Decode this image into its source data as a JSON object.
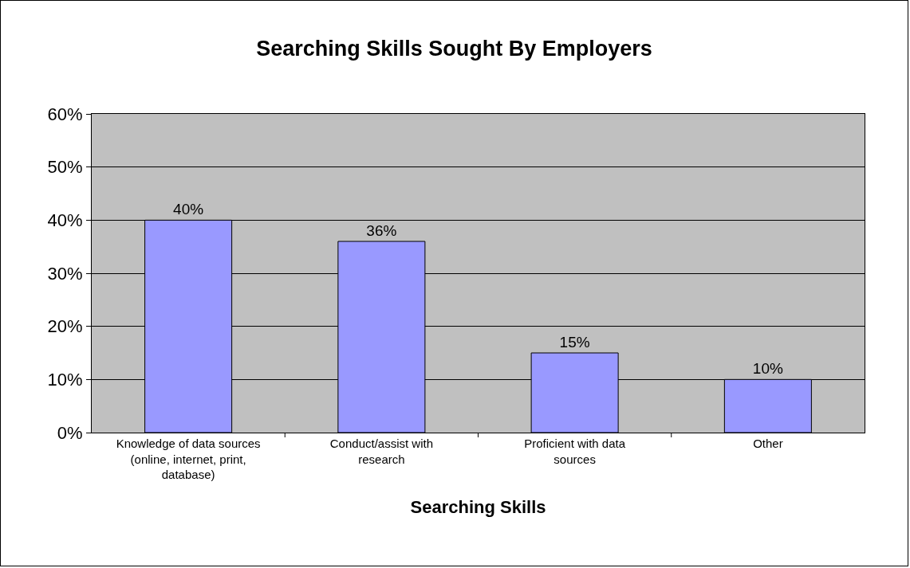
{
  "chart_data": {
    "type": "bar",
    "title": "Searching Skills Sought By Employers",
    "xlabel": "Searching Skills",
    "categories": [
      "Knowledge of data sources (online, internet, print, database)",
      "Conduct/assist with research",
      "Proficient with data sources",
      "Other"
    ],
    "values": [
      40,
      36,
      15,
      10
    ],
    "value_labels": [
      "40%",
      "36%",
      "15%",
      "10%"
    ],
    "color": "#9999ff",
    "ylim": [
      0,
      60
    ],
    "yticks": [
      {
        "value": 0,
        "label": "0%"
      },
      {
        "value": 10,
        "label": "10%"
      },
      {
        "value": 20,
        "label": "20%"
      },
      {
        "value": 30,
        "label": "30%"
      },
      {
        "value": 40,
        "label": "40%"
      },
      {
        "value": 50,
        "label": "50%"
      },
      {
        "value": 60,
        "label": "60%"
      }
    ],
    "grid": "y"
  }
}
